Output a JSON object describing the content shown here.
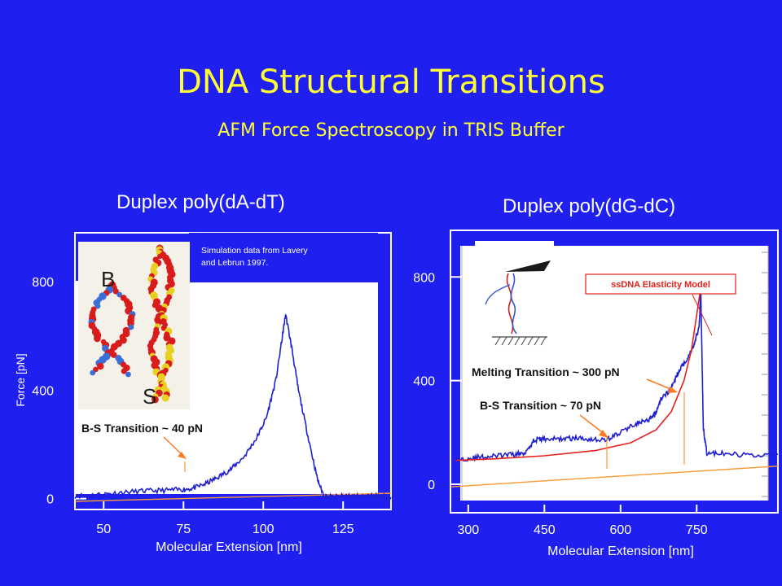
{
  "slide": {
    "title": "DNA Structural Transitions",
    "subtitle": "AFM Force Spectroscopy in TRIS Buffer"
  },
  "colors": {
    "background": "#1f1ff0",
    "title": "#ffff33",
    "trace": "#1f1fd0",
    "baseline": "#ff9a33",
    "model": "#e8201a",
    "annotation_arrow": "#ff7a20"
  },
  "chart_data": [
    {
      "type": "line",
      "title": "Duplex poly(dA-dT)",
      "xlabel": "Molecular Extension [nm]",
      "ylabel": "Force [pN]",
      "xlim": [
        41,
        140
      ],
      "ylim": [
        -40,
        980
      ],
      "xticks": [
        50,
        75,
        100,
        125
      ],
      "yticks": [
        0,
        400,
        800
      ],
      "inset_image_labels": [
        "B",
        "S"
      ],
      "note": "Simulation data  from  Lavery and Lebrun 1997.",
      "annotations": [
        {
          "text": "B-S Transition ~ 40 pN",
          "target": [
            77,
            35
          ]
        }
      ],
      "series": [
        {
          "type": "force-extension",
          "x": [
            41,
            48,
            55,
            62,
            68,
            74,
            78,
            82,
            86,
            90,
            94,
            98,
            101,
            104,
            106,
            107,
            109,
            111,
            114,
            117,
            119,
            122,
            126,
            130,
            135,
            140
          ],
          "y": [
            10,
            15,
            22,
            28,
            30,
            33,
            38,
            55,
            80,
            110,
            155,
            225,
            300,
            440,
            600,
            680,
            550,
            400,
            230,
            70,
            10,
            5,
            12,
            8,
            10,
            5
          ]
        }
      ]
    },
    {
      "type": "line",
      "title": "Duplex poly(dG-dC)",
      "xlabel": "Molecular Extension [nm]",
      "ylabel": "",
      "xlim": [
        265,
        910
      ],
      "ylim": [
        -110,
        980
      ],
      "xticks": [
        300,
        450,
        600,
        750
      ],
      "yticks": [
        0,
        400,
        800
      ],
      "legend_box": "ssDNA  Elasticity Model",
      "annotations": [
        {
          "text": "Melting Transition ~ 300 pN",
          "target": [
            700,
            350
          ]
        },
        {
          "text": "B-S Transition ~ 70 pN",
          "target": [
            555,
            140
          ]
        }
      ],
      "series": [
        {
          "type": "force-extension",
          "x": [
            275,
            300,
            330,
            360,
            390,
            410,
            430,
            450,
            480,
            510,
            540,
            570,
            600,
            630,
            655,
            668,
            680,
            700,
            715,
            730,
            745,
            755,
            758,
            763,
            770,
            800,
            850,
            910
          ],
          "y": [
            95,
            100,
            105,
            110,
            115,
            120,
            170,
            175,
            175,
            178,
            175,
            170,
            200,
            235,
            245,
            270,
            330,
            370,
            440,
            480,
            540,
            610,
            760,
            220,
            120,
            118,
            112,
            115
          ]
        },
        {
          "type": "model",
          "x": [
            275,
            350,
            450,
            550,
            620,
            670,
            700,
            725,
            740,
            752,
            758
          ],
          "y": [
            92,
            98,
            110,
            130,
            160,
            210,
            280,
            400,
            520,
            680,
            760
          ]
        }
      ]
    }
  ]
}
